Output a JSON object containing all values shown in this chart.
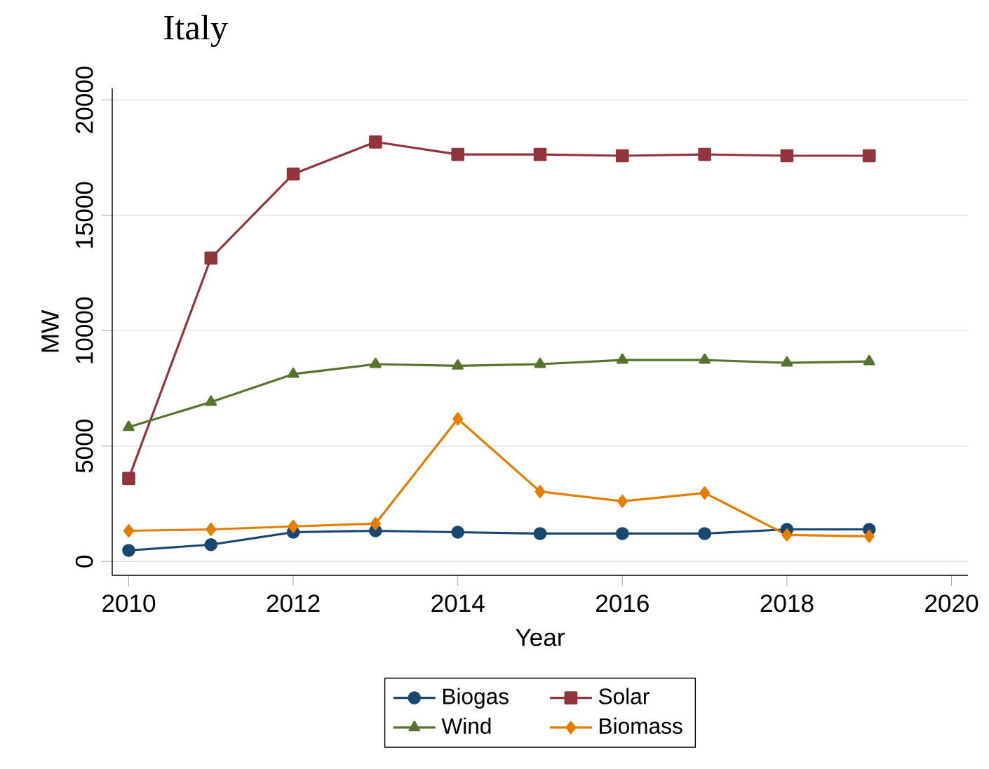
{
  "chart_data": {
    "type": "line",
    "title": "Italy",
    "xlabel": "Year",
    "ylabel": "MW",
    "x": [
      2010,
      2011,
      2012,
      2013,
      2014,
      2015,
      2016,
      2017,
      2018,
      2019
    ],
    "series": [
      {
        "name": "Biogas",
        "color": "#1a476f",
        "marker": "circle",
        "values": [
          480,
          730,
          1270,
          1330,
          1270,
          1210,
          1210,
          1210,
          1390,
          1390
        ]
      },
      {
        "name": "Solar",
        "color": "#90353b",
        "marker": "square",
        "values": [
          3600,
          13150,
          16790,
          18180,
          17640,
          17640,
          17580,
          17640,
          17580,
          17580
        ]
      },
      {
        "name": "Wind",
        "color": "#55752f",
        "marker": "triangle",
        "values": [
          5820,
          6910,
          8120,
          8550,
          8480,
          8550,
          8730,
          8730,
          8610,
          8670
        ]
      },
      {
        "name": "Biomass",
        "color": "#e37e00",
        "marker": "diamond",
        "values": [
          1330,
          1390,
          1520,
          1640,
          6180,
          3030,
          2610,
          2970,
          1150,
          1090
        ]
      }
    ],
    "xlim": [
      2009.8,
      2020.2
    ],
    "ylim": [
      -600,
      20500
    ],
    "xticks": [
      2010,
      2012,
      2014,
      2016,
      2018,
      2020
    ],
    "yticks": [
      0,
      5000,
      10000,
      15000,
      20000
    ],
    "grid": "y",
    "legend": "bottom",
    "line_style": "solid"
  }
}
